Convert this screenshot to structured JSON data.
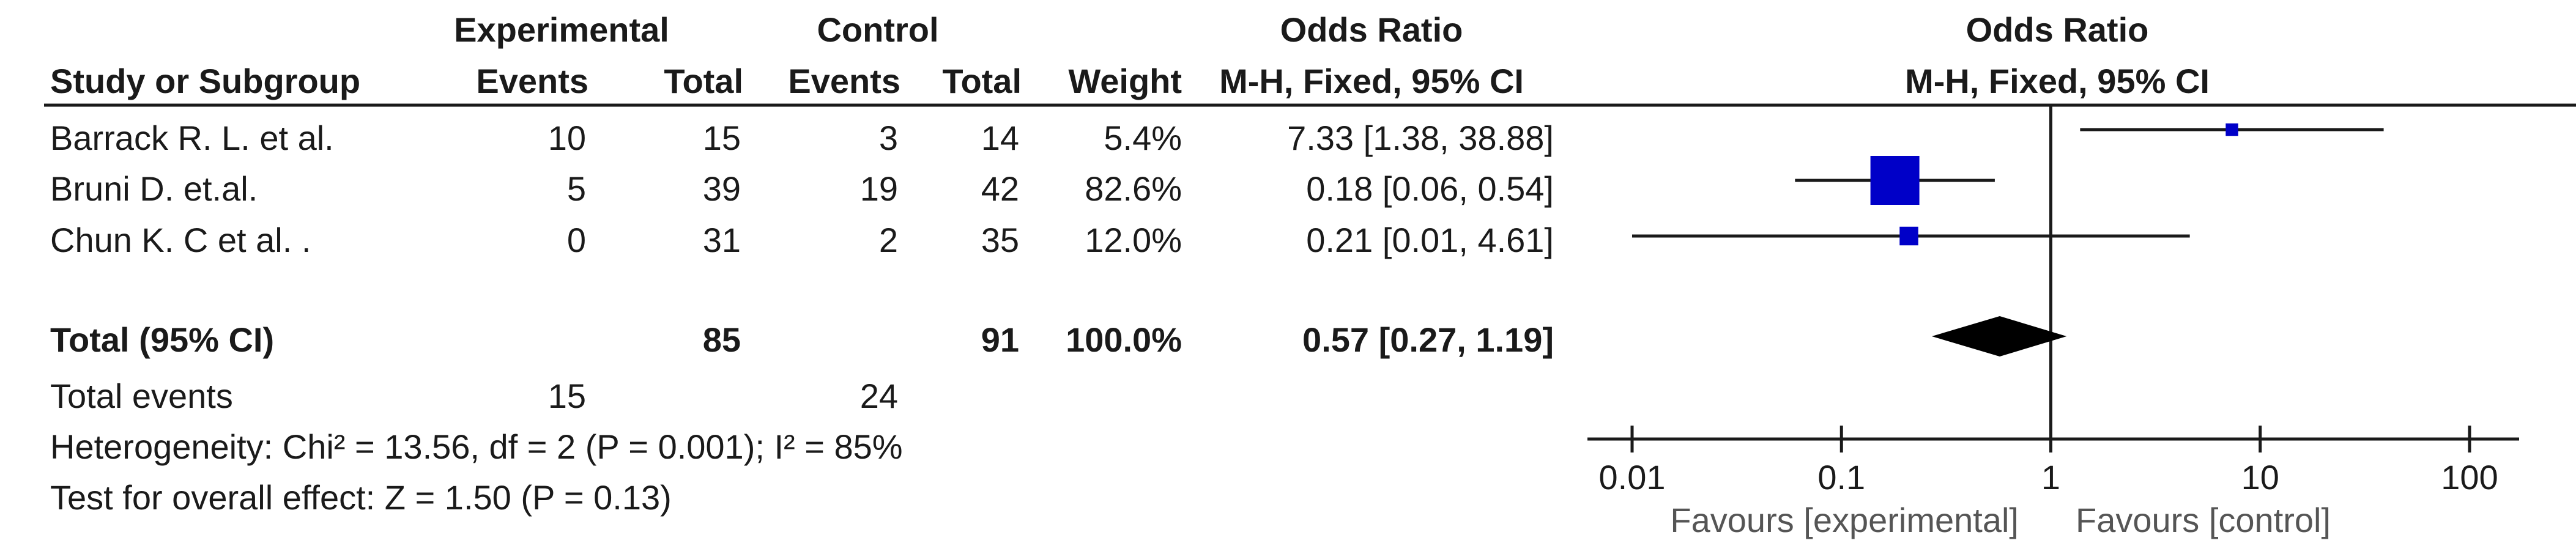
{
  "header": {
    "group_experimental": "Experimental",
    "group_control": "Control",
    "odds_ratio_table": "Odds Ratio",
    "odds_ratio_plot": "Odds Ratio",
    "study": "Study or Subgroup",
    "exp_events": "Events",
    "exp_total": "Total",
    "ctl_events": "Events",
    "ctl_total": "Total",
    "weight": "Weight",
    "method_table": "M-H, Fixed, 95% CI",
    "method_plot": "M-H, Fixed, 95% CI"
  },
  "studies": [
    {
      "name": "Barrack R. L. et al.",
      "exp_events": "10",
      "exp_total": "15",
      "ctl_events": "3",
      "ctl_total": "14",
      "weight": "5.4%",
      "ci_text": "7.33 [1.38, 38.88]"
    },
    {
      "name": "Bruni D. et.al.",
      "exp_events": "5",
      "exp_total": "39",
      "ctl_events": "19",
      "ctl_total": "42",
      "weight": "82.6%",
      "ci_text": "0.18 [0.06, 0.54]"
    },
    {
      "name": "Chun K. C et al. .",
      "exp_events": "0",
      "exp_total": "31",
      "ctl_events": "2",
      "ctl_total": "35",
      "weight": "12.0%",
      "ci_text": "0.21 [0.01, 4.61]"
    }
  ],
  "total": {
    "label": "Total (95% CI)",
    "exp_total": "85",
    "ctl_total": "91",
    "weight": "100.0%",
    "ci_text": "0.57 [0.27, 1.19]"
  },
  "events": {
    "label": "Total events",
    "exp": "15",
    "ctl": "24"
  },
  "heterogeneity": "Heterogeneity: Chi² = 13.56, df = 2 (P = 0.001); I² = 85%",
  "overall_effect": "Test for overall effect: Z = 1.50 (P = 0.13)",
  "axis": {
    "tick_labels": [
      "0.01",
      "0.1",
      "1",
      "10",
      "100"
    ],
    "favours_left": "Favours [experimental]",
    "favours_right": "Favours [control]"
  },
  "colors": {
    "square": "#0000c8",
    "diamond": "#000000",
    "line": "#1a1a1a"
  },
  "chart_data": {
    "type": "forest",
    "x_scale": "log",
    "xlim": [
      0.01,
      100
    ],
    "x_ticks": [
      0.01,
      0.1,
      1,
      10,
      100
    ],
    "null_line": 1,
    "series": [
      {
        "name": "Barrack R. L. et al.",
        "or": 7.33,
        "lower": 1.38,
        "upper": 38.88,
        "weight": 5.4
      },
      {
        "name": "Bruni D. et.al.",
        "or": 0.18,
        "lower": 0.06,
        "upper": 0.54,
        "weight": 82.6
      },
      {
        "name": "Chun K. C et al. .",
        "or": 0.21,
        "lower": 0.01,
        "upper": 4.61,
        "weight": 12.0
      }
    ],
    "pooled": {
      "or": 0.57,
      "lower": 0.27,
      "upper": 1.19
    }
  }
}
